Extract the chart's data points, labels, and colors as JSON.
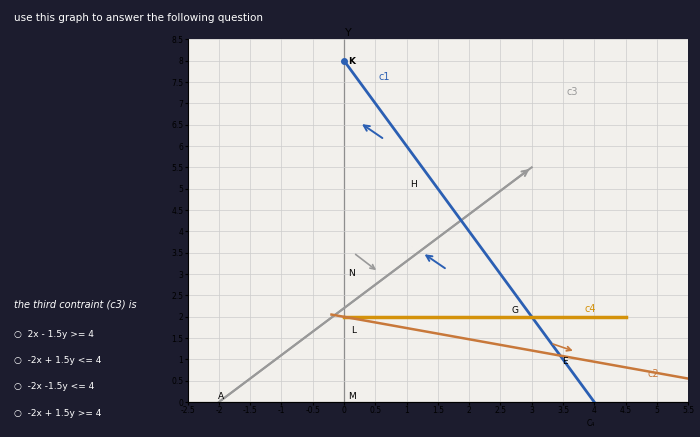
{
  "title": "use this graph to answer the following question",
  "xlim": [
    -2.5,
    5.5
  ],
  "ylim": [
    0,
    8.5
  ],
  "xticks": [
    -2.5,
    -2,
    -1.5,
    -1,
    -0.5,
    0,
    0.5,
    1,
    1.5,
    2,
    2.5,
    3,
    3.5,
    4,
    4.5,
    5,
    5.5
  ],
  "yticks": [
    0,
    0.5,
    1,
    1.5,
    2,
    2.5,
    3,
    3.5,
    4,
    4.5,
    5,
    5.5,
    6,
    6.5,
    7,
    7.5,
    8,
    8.5
  ],
  "bg_outer": "#1c1c2e",
  "bg_plot": "#f2f0ec",
  "grid_color": "#cccccc",
  "c1_color": "#2b5fb3",
  "c3_color": "#999999",
  "c4_color": "#d4920a",
  "c2_color": "#c8783a",
  "question_text": "the third contraint (c3) is",
  "option1": "2x - 1.5y >= 4",
  "option2": "-2x + 1.5y <= 4",
  "option3": "-2x -1.5y <= 4",
  "option4": "-2x + 1.5y >= 4"
}
